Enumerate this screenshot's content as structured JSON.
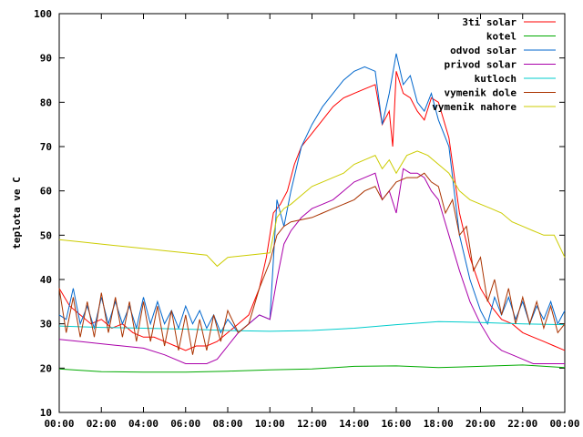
{
  "chart_data": {
    "type": "line",
    "title": "",
    "xlabel": "",
    "ylabel": "teplota ve C",
    "xlim": [
      "00:00",
      "24:00"
    ],
    "ylim": [
      10,
      100
    ],
    "grid": false,
    "legend": "top-right",
    "x_ticks": [
      "00:00",
      "02:00",
      "04:00",
      "06:00",
      "08:00",
      "10:00",
      "12:00",
      "14:00",
      "16:00",
      "18:00",
      "20:00",
      "22:00",
      "00:00"
    ],
    "y_ticks": [
      10,
      20,
      30,
      40,
      50,
      60,
      70,
      80,
      90,
      100
    ],
    "series": [
      {
        "name": "3ti solar",
        "color": "#ff0000",
        "points": [
          [
            "00:00",
            38
          ],
          [
            "00:30",
            34
          ],
          [
            "01:00",
            32
          ],
          [
            "01:30",
            30
          ],
          [
            "02:00",
            31
          ],
          [
            "02:30",
            29
          ],
          [
            "03:00",
            30
          ],
          [
            "03:30",
            28
          ],
          [
            "04:00",
            27
          ],
          [
            "04:30",
            27
          ],
          [
            "05:00",
            26
          ],
          [
            "05:30",
            25
          ],
          [
            "06:00",
            24
          ],
          [
            "06:30",
            25
          ],
          [
            "07:00",
            25
          ],
          [
            "07:30",
            26
          ],
          [
            "08:00",
            28
          ],
          [
            "08:30",
            30
          ],
          [
            "09:00",
            32
          ],
          [
            "09:30",
            38
          ],
          [
            "09:50",
            45
          ],
          [
            "10:10",
            55
          ],
          [
            "10:30",
            57
          ],
          [
            "10:50",
            60
          ],
          [
            "11:10",
            66
          ],
          [
            "11:30",
            70
          ],
          [
            "12:00",
            73
          ],
          [
            "12:30",
            76
          ],
          [
            "13:00",
            79
          ],
          [
            "13:30",
            81
          ],
          [
            "14:00",
            82
          ],
          [
            "14:30",
            83
          ],
          [
            "15:00",
            84
          ],
          [
            "15:20",
            75
          ],
          [
            "15:40",
            78
          ],
          [
            "15:50",
            70
          ],
          [
            "16:00",
            87
          ],
          [
            "16:20",
            82
          ],
          [
            "16:40",
            81
          ],
          [
            "17:00",
            78
          ],
          [
            "17:20",
            76
          ],
          [
            "17:40",
            81
          ],
          [
            "18:00",
            80
          ],
          [
            "18:30",
            72
          ],
          [
            "19:00",
            55
          ],
          [
            "19:30",
            45
          ],
          [
            "20:00",
            38
          ],
          [
            "20:30",
            34
          ],
          [
            "21:00",
            31
          ],
          [
            "21:30",
            30
          ],
          [
            "22:00",
            28
          ],
          [
            "22:30",
            27
          ],
          [
            "23:00",
            26
          ],
          [
            "23:30",
            25
          ],
          [
            "24:00",
            24
          ]
        ]
      },
      {
        "name": "kotel",
        "color": "#00aa00",
        "points": [
          [
            "00:00",
            19.8
          ],
          [
            "02:00",
            19.2
          ],
          [
            "04:00",
            19.1
          ],
          [
            "06:00",
            19.1
          ],
          [
            "08:00",
            19.3
          ],
          [
            "10:00",
            19.6
          ],
          [
            "12:00",
            19.8
          ],
          [
            "14:00",
            20.4
          ],
          [
            "16:00",
            20.5
          ],
          [
            "18:00",
            20.1
          ],
          [
            "20:00",
            20.4
          ],
          [
            "22:00",
            20.7
          ],
          [
            "24:00",
            20.1
          ]
        ]
      },
      {
        "name": "odvod solar",
        "color": "#0066cc",
        "points": [
          [
            "00:00",
            32
          ],
          [
            "00:20",
            31
          ],
          [
            "00:40",
            38
          ],
          [
            "01:00",
            30
          ],
          [
            "01:20",
            34
          ],
          [
            "01:40",
            29
          ],
          [
            "02:00",
            36
          ],
          [
            "02:20",
            30
          ],
          [
            "02:40",
            35
          ],
          [
            "03:00",
            30
          ],
          [
            "03:20",
            34
          ],
          [
            "03:40",
            29
          ],
          [
            "04:00",
            36
          ],
          [
            "04:20",
            30
          ],
          [
            "04:40",
            35
          ],
          [
            "05:00",
            30
          ],
          [
            "05:20",
            33
          ],
          [
            "05:40",
            29
          ],
          [
            "06:00",
            34
          ],
          [
            "06:20",
            30
          ],
          [
            "06:40",
            33
          ],
          [
            "07:00",
            29
          ],
          [
            "07:20",
            32
          ],
          [
            "07:40",
            28
          ],
          [
            "08:00",
            31
          ],
          [
            "08:30",
            28
          ],
          [
            "09:00",
            30
          ],
          [
            "09:30",
            32
          ],
          [
            "10:00",
            31
          ],
          [
            "10:20",
            58
          ],
          [
            "10:40",
            52
          ],
          [
            "11:00",
            60
          ],
          [
            "11:30",
            70
          ],
          [
            "12:00",
            75
          ],
          [
            "12:30",
            79
          ],
          [
            "13:00",
            82
          ],
          [
            "13:30",
            85
          ],
          [
            "14:00",
            87
          ],
          [
            "14:30",
            88
          ],
          [
            "15:00",
            87
          ],
          [
            "15:20",
            75
          ],
          [
            "15:40",
            82
          ],
          [
            "16:00",
            91
          ],
          [
            "16:20",
            84
          ],
          [
            "16:40",
            86
          ],
          [
            "17:00",
            80
          ],
          [
            "17:20",
            78
          ],
          [
            "17:40",
            82
          ],
          [
            "18:00",
            76
          ],
          [
            "18:30",
            70
          ],
          [
            "19:00",
            50
          ],
          [
            "19:30",
            40
          ],
          [
            "20:00",
            33
          ],
          [
            "20:20",
            30
          ],
          [
            "20:40",
            36
          ],
          [
            "21:00",
            32
          ],
          [
            "21:20",
            36
          ],
          [
            "21:40",
            31
          ],
          [
            "22:00",
            35
          ],
          [
            "22:20",
            30
          ],
          [
            "22:40",
            34
          ],
          [
            "23:00",
            31
          ],
          [
            "23:20",
            35
          ],
          [
            "23:40",
            30
          ],
          [
            "24:00",
            33
          ]
        ]
      },
      {
        "name": "privod solar",
        "color": "#aa00aa",
        "points": [
          [
            "00:00",
            26.5
          ],
          [
            "01:00",
            26
          ],
          [
            "02:00",
            25.5
          ],
          [
            "03:00",
            25
          ],
          [
            "04:00",
            24.5
          ],
          [
            "05:00",
            23
          ],
          [
            "06:00",
            21
          ],
          [
            "07:00",
            21
          ],
          [
            "07:30",
            22
          ],
          [
            "08:00",
            25
          ],
          [
            "08:30",
            28
          ],
          [
            "09:00",
            30
          ],
          [
            "09:30",
            32
          ],
          [
            "10:00",
            31
          ],
          [
            "10:20",
            40
          ],
          [
            "10:40",
            48
          ],
          [
            "11:00",
            51
          ],
          [
            "11:30",
            54
          ],
          [
            "12:00",
            56
          ],
          [
            "12:30",
            57
          ],
          [
            "13:00",
            58
          ],
          [
            "13:30",
            60
          ],
          [
            "14:00",
            62
          ],
          [
            "14:30",
            63
          ],
          [
            "15:00",
            64
          ],
          [
            "15:20",
            58
          ],
          [
            "15:40",
            60
          ],
          [
            "16:00",
            55
          ],
          [
            "16:20",
            65
          ],
          [
            "16:40",
            64
          ],
          [
            "17:00",
            64
          ],
          [
            "17:20",
            63
          ],
          [
            "17:40",
            60
          ],
          [
            "18:00",
            58
          ],
          [
            "18:30",
            50
          ],
          [
            "19:00",
            42
          ],
          [
            "19:30",
            35
          ],
          [
            "20:00",
            30
          ],
          [
            "20:30",
            26
          ],
          [
            "21:00",
            24
          ],
          [
            "21:30",
            23
          ],
          [
            "22:00",
            22
          ],
          [
            "22:30",
            21
          ],
          [
            "23:00",
            21
          ],
          [
            "23:30",
            21
          ],
          [
            "24:00",
            21
          ]
        ]
      },
      {
        "name": "kutloch",
        "color": "#00cccc",
        "points": [
          [
            "00:00",
            29.5
          ],
          [
            "02:00",
            29.2
          ],
          [
            "04:00",
            29
          ],
          [
            "06:00",
            28.8
          ],
          [
            "08:00",
            28.5
          ],
          [
            "10:00",
            28.3
          ],
          [
            "12:00",
            28.5
          ],
          [
            "14:00",
            29
          ],
          [
            "16:00",
            29.8
          ],
          [
            "18:00",
            30.5
          ],
          [
            "20:00",
            30.3
          ],
          [
            "22:00",
            30
          ],
          [
            "24:00",
            29.8
          ]
        ]
      },
      {
        "name": "vymenik dole",
        "color": "#aa3300",
        "points": [
          [
            "00:00",
            38
          ],
          [
            "00:20",
            28
          ],
          [
            "00:40",
            36
          ],
          [
            "01:00",
            27
          ],
          [
            "01:20",
            35
          ],
          [
            "01:40",
            27
          ],
          [
            "02:00",
            37
          ],
          [
            "02:20",
            28
          ],
          [
            "02:40",
            36
          ],
          [
            "03:00",
            27
          ],
          [
            "03:20",
            35
          ],
          [
            "03:40",
            26
          ],
          [
            "04:00",
            35
          ],
          [
            "04:20",
            26
          ],
          [
            "04:40",
            34
          ],
          [
            "05:00",
            25
          ],
          [
            "05:20",
            33
          ],
          [
            "05:40",
            24
          ],
          [
            "06:00",
            32
          ],
          [
            "06:20",
            23
          ],
          [
            "06:40",
            31
          ],
          [
            "07:00",
            24
          ],
          [
            "07:20",
            32
          ],
          [
            "07:40",
            26
          ],
          [
            "08:00",
            33
          ],
          [
            "08:30",
            28
          ],
          [
            "09:00",
            30
          ],
          [
            "09:30",
            38
          ],
          [
            "10:00",
            44
          ],
          [
            "10:20",
            50
          ],
          [
            "10:40",
            52
          ],
          [
            "11:00",
            53
          ],
          [
            "12:00",
            54
          ],
          [
            "12:30",
            55
          ],
          [
            "13:00",
            56
          ],
          [
            "13:30",
            57
          ],
          [
            "14:00",
            58
          ],
          [
            "14:30",
            60
          ],
          [
            "15:00",
            61
          ],
          [
            "15:20",
            58
          ],
          [
            "15:40",
            60
          ],
          [
            "16:00",
            62
          ],
          [
            "16:30",
            63
          ],
          [
            "17:00",
            63
          ],
          [
            "17:20",
            64
          ],
          [
            "17:40",
            62
          ],
          [
            "18:00",
            61
          ],
          [
            "18:20",
            55
          ],
          [
            "18:40",
            58
          ],
          [
            "19:00",
            50
          ],
          [
            "19:20",
            52
          ],
          [
            "19:40",
            42
          ],
          [
            "20:00",
            45
          ],
          [
            "20:20",
            35
          ],
          [
            "20:40",
            40
          ],
          [
            "21:00",
            32
          ],
          [
            "21:20",
            38
          ],
          [
            "21:40",
            30
          ],
          [
            "22:00",
            36
          ],
          [
            "22:20",
            30
          ],
          [
            "22:40",
            35
          ],
          [
            "23:00",
            29
          ],
          [
            "23:20",
            34
          ],
          [
            "23:40",
            28
          ],
          [
            "24:00",
            30
          ]
        ]
      },
      {
        "name": "vymenik nahore",
        "color": "#cccc00",
        "points": [
          [
            "00:00",
            49
          ],
          [
            "01:00",
            48.5
          ],
          [
            "02:00",
            48
          ],
          [
            "03:00",
            47.5
          ],
          [
            "04:00",
            47
          ],
          [
            "05:00",
            46.5
          ],
          [
            "06:00",
            46
          ],
          [
            "07:00",
            45.5
          ],
          [
            "07:30",
            43
          ],
          [
            "08:00",
            45
          ],
          [
            "09:00",
            45.5
          ],
          [
            "10:00",
            46
          ],
          [
            "10:20",
            54
          ],
          [
            "10:40",
            56
          ],
          [
            "11:00",
            57
          ],
          [
            "11:30",
            59
          ],
          [
            "12:00",
            61
          ],
          [
            "12:30",
            62
          ],
          [
            "13:00",
            63
          ],
          [
            "13:30",
            64
          ],
          [
            "14:00",
            66
          ],
          [
            "14:30",
            67
          ],
          [
            "15:00",
            68
          ],
          [
            "15:20",
            65
          ],
          [
            "15:40",
            67
          ],
          [
            "16:00",
            64
          ],
          [
            "16:30",
            68
          ],
          [
            "17:00",
            69
          ],
          [
            "17:30",
            68
          ],
          [
            "18:00",
            66
          ],
          [
            "18:30",
            64
          ],
          [
            "19:00",
            60
          ],
          [
            "19:30",
            58
          ],
          [
            "20:00",
            57
          ],
          [
            "20:30",
            56
          ],
          [
            "21:00",
            55
          ],
          [
            "21:30",
            53
          ],
          [
            "22:00",
            52
          ],
          [
            "22:30",
            51
          ],
          [
            "23:00",
            50
          ],
          [
            "23:30",
            50
          ],
          [
            "24:00",
            45
          ]
        ]
      }
    ]
  }
}
